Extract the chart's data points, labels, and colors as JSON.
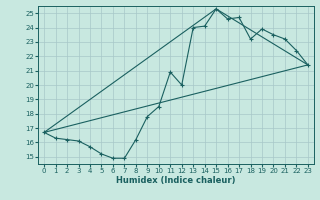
{
  "xlabel": "Humidex (Indice chaleur)",
  "xlim": [
    -0.5,
    23.5
  ],
  "ylim": [
    14.5,
    25.5
  ],
  "xticks": [
    0,
    1,
    2,
    3,
    4,
    5,
    6,
    7,
    8,
    9,
    10,
    11,
    12,
    13,
    14,
    15,
    16,
    17,
    18,
    19,
    20,
    21,
    22,
    23
  ],
  "yticks": [
    15,
    16,
    17,
    18,
    19,
    20,
    21,
    22,
    23,
    24,
    25
  ],
  "background_color": "#c8e8e0",
  "grid_color": "#b0d8d0",
  "line_color": "#1a6060",
  "line1_x": [
    0,
    1,
    2,
    3,
    4,
    5,
    6,
    7,
    8,
    9,
    10,
    11,
    12,
    13,
    14,
    15,
    16,
    17,
    18,
    19,
    20,
    21,
    22,
    23
  ],
  "line1_y": [
    16.7,
    16.3,
    16.2,
    16.1,
    15.7,
    15.2,
    14.9,
    14.9,
    16.2,
    17.8,
    18.5,
    20.9,
    20.0,
    24.0,
    24.1,
    25.3,
    24.6,
    24.7,
    23.2,
    23.9,
    23.5,
    23.2,
    22.4,
    21.4
  ],
  "line2_x": [
    0,
    23
  ],
  "line2_y": [
    16.7,
    21.4
  ],
  "line3_x": [
    0,
    15,
    23
  ],
  "line3_y": [
    16.7,
    25.3,
    21.4
  ]
}
